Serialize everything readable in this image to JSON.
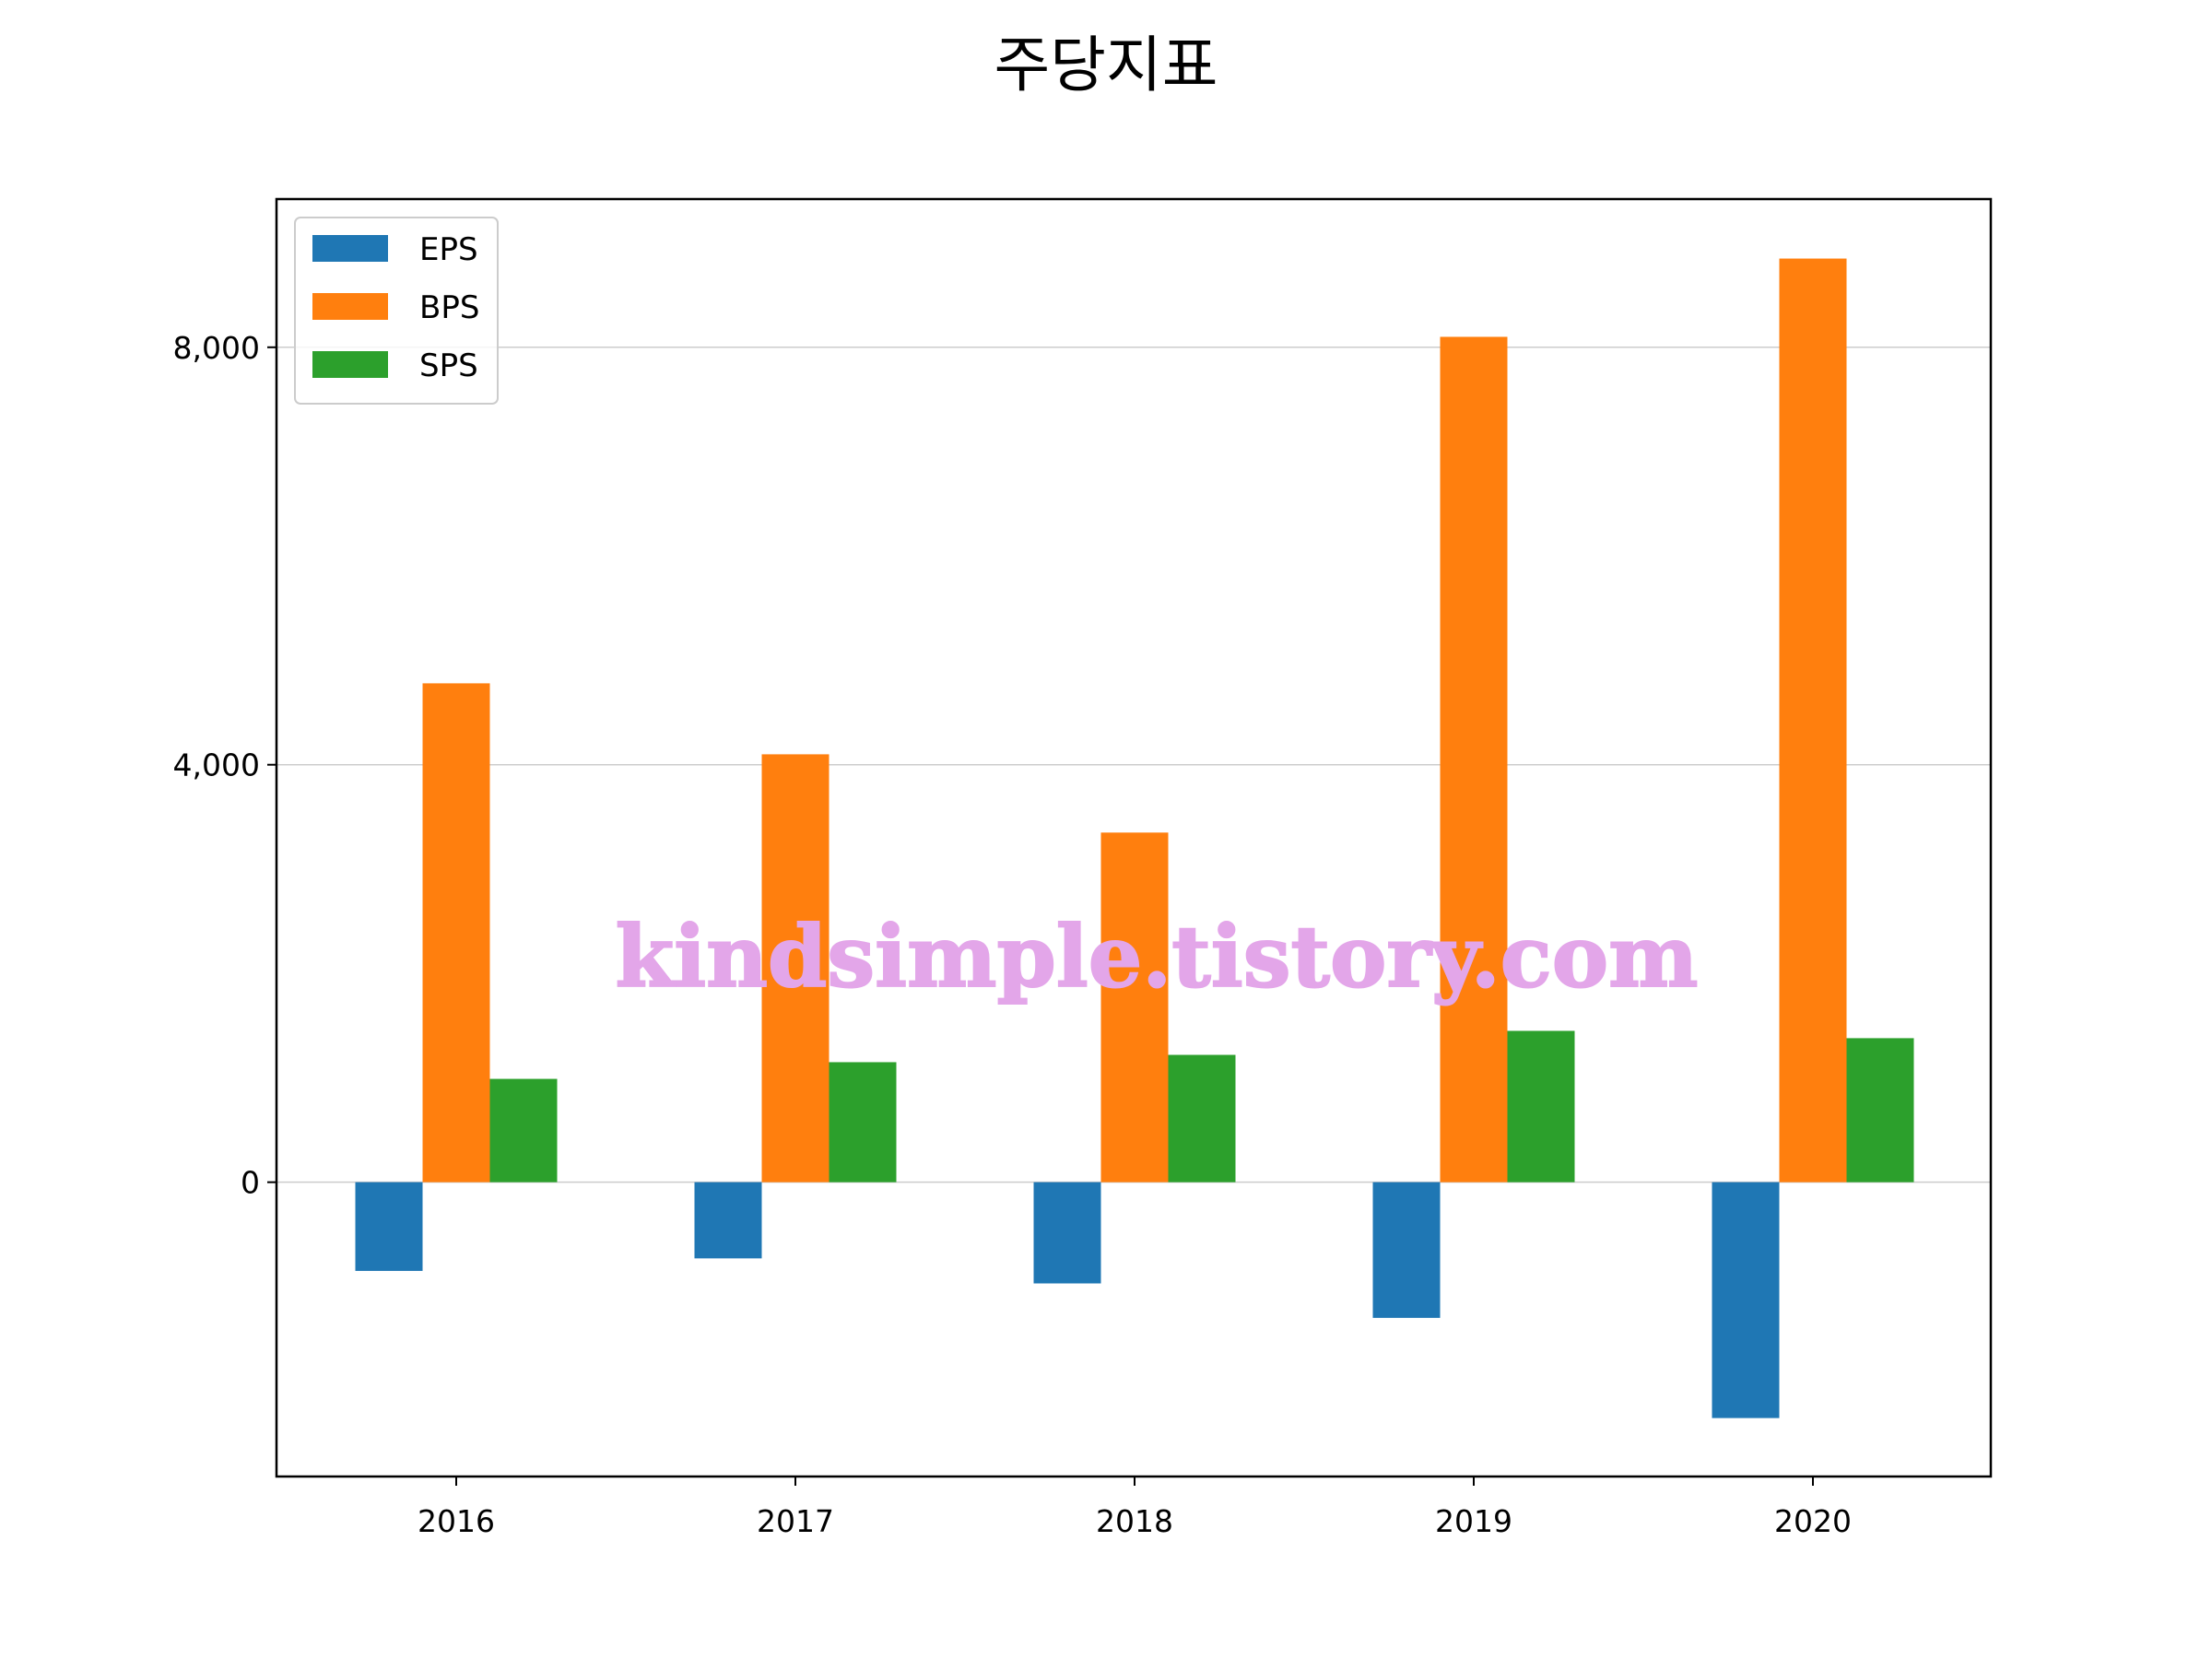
{
  "chart_data": {
    "type": "bar",
    "title": "주당지표",
    "xlabel": "",
    "ylabel": "",
    "categories": [
      "2016",
      "2017",
      "2018",
      "2019",
      "2020"
    ],
    "series": [
      {
        "name": "EPS",
        "color": "#1f77b4",
        "values": [
          -850,
          -730,
          -970,
          -1300,
          -2260
        ]
      },
      {
        "name": "BPS",
        "color": "#ff7f0e",
        "values": [
          4780,
          4100,
          3350,
          8100,
          8850
        ]
      },
      {
        "name": "SPS",
        "color": "#2ca02c",
        "values": [
          990,
          1150,
          1220,
          1450,
          1380
        ]
      }
    ],
    "ylim": [
      -2820,
      9420
    ],
    "yticks": [
      0,
      4000,
      8000
    ],
    "ytick_labels": [
      "0",
      "4,000",
      "8,000"
    ],
    "grid": "y",
    "legend_position": "top-left",
    "watermark": "kindsimple.tistory.com"
  }
}
